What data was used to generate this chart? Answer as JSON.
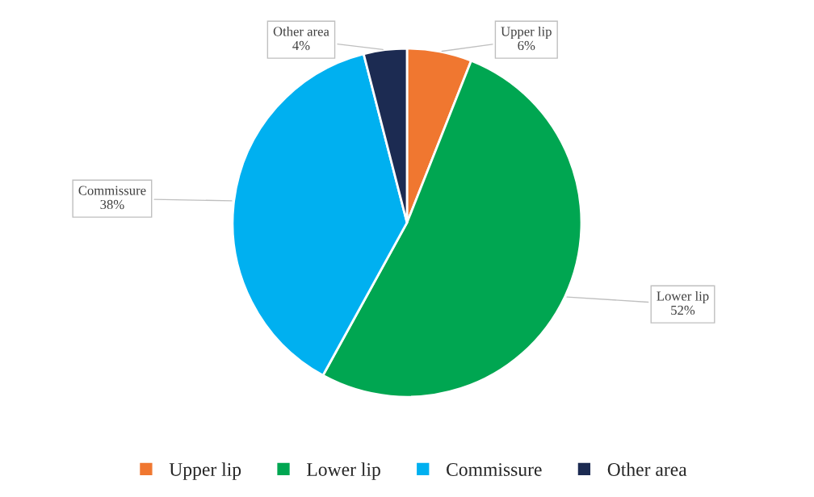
{
  "chart_data": {
    "type": "pie",
    "categories": [
      "Upper lip",
      "Lower lip",
      "Commissure",
      "Other area"
    ],
    "values": [
      6,
      52,
      38,
      4
    ],
    "colors": [
      "#f07730",
      "#00a651",
      "#00b0f0",
      "#1c2b52"
    ],
    "value_labels": [
      "6%",
      "52%",
      "38%",
      "4%"
    ],
    "legend": "bottom"
  }
}
